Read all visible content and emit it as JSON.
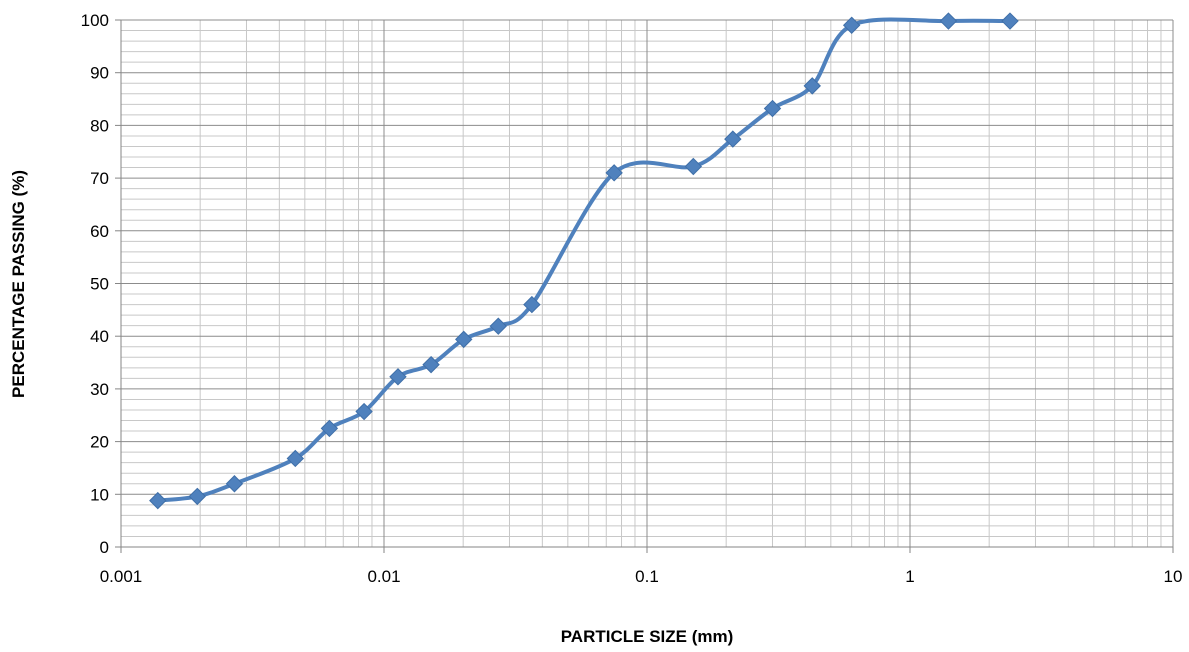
{
  "chart_data": {
    "type": "line",
    "title": "",
    "xlabel": "PARTICLE SIZE (mm)",
    "ylabel": "PERCENTAGE PASSING (%)",
    "x_scale": "log",
    "xlim": [
      0.001,
      10
    ],
    "ylim": [
      0,
      100
    ],
    "x_ticks": [
      0.001,
      0.01,
      0.1,
      1,
      10
    ],
    "x_tick_labels": [
      "0.001",
      "0.01",
      "0.1",
      "1",
      "10"
    ],
    "y_ticks": [
      0,
      10,
      20,
      30,
      40,
      50,
      60,
      70,
      80,
      90,
      100
    ],
    "y_tick_labels": [
      "0",
      "10",
      "20",
      "30",
      "40",
      "50",
      "60",
      "70",
      "80",
      "90",
      "100"
    ],
    "grid": true,
    "legend": "none",
    "series": [
      {
        "color": "#4f81bd",
        "marker": "diamond",
        "smooth": true,
        "x": [
          0.00138,
          0.00195,
          0.0027,
          0.0046,
          0.0062,
          0.0084,
          0.0113,
          0.0151,
          0.0201,
          0.0272,
          0.0365,
          0.075,
          0.15,
          0.212,
          0.3,
          0.425,
          0.6,
          1.4,
          2.4
        ],
        "y": [
          8.8,
          9.6,
          12.0,
          16.8,
          22.5,
          25.7,
          32.3,
          34.6,
          39.4,
          41.9,
          46.0,
          71.0,
          72.2,
          77.4,
          83.2,
          87.5,
          99.0,
          99.8,
          99.8
        ]
      }
    ]
  }
}
